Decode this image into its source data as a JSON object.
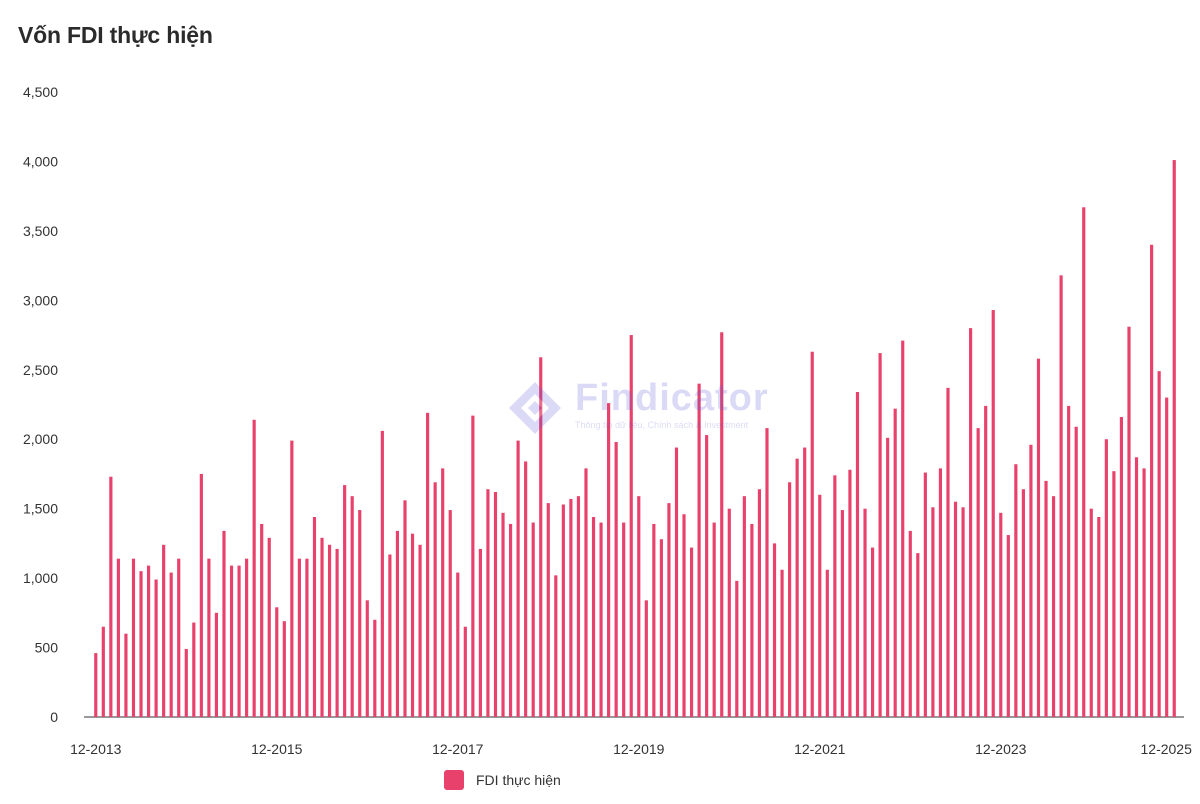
{
  "chart_data": {
    "type": "bar",
    "title": "Vốn FDI thực hiện",
    "series": [
      {
        "name": "FDI thực hiện",
        "color": "#e8416b",
        "values": [
          460,
          650,
          1730,
          1140,
          600,
          1140,
          1050,
          1090,
          990,
          1240,
          1040,
          1140,
          490,
          680,
          1750,
          1140,
          750,
          1340,
          1090,
          1090,
          1140,
          2140,
          1390,
          1290,
          790,
          690,
          1990,
          1140,
          1140,
          1440,
          1290,
          1240,
          1210,
          1670,
          1590,
          1490,
          840,
          700,
          2060,
          1170,
          1340,
          1560,
          1320,
          1240,
          2190,
          1690,
          1790,
          1490,
          1040,
          650,
          2170,
          1210,
          1640,
          1620,
          1470,
          1390,
          1990,
          1840,
          1400,
          2590,
          1540,
          1020,
          1530,
          1570,
          1590,
          1790,
          1440,
          1400,
          2260,
          1980,
          1400,
          2750,
          1590,
          840,
          1390,
          1280,
          1540,
          1940,
          1460,
          1220,
          2400,
          2030,
          1400,
          2770,
          1500,
          980,
          1590,
          1390,
          1640,
          2080,
          1250,
          1060,
          1690,
          1860,
          1940,
          2630,
          1600,
          1060,
          1740,
          1490,
          1780,
          2340,
          1500,
          1220,
          2620,
          2010,
          2220,
          2710,
          1340,
          1180,
          1760,
          1510,
          1790,
          2370,
          1550,
          1510,
          2800,
          2080,
          2240,
          2930,
          1470,
          1310,
          1820,
          1640,
          1960,
          2580,
          1700,
          1590,
          3180,
          2240,
          2090,
          3670,
          1500,
          1440,
          2000,
          1770,
          2160,
          2810,
          1870,
          1790,
          3400,
          2490,
          2300,
          4010
        ]
      }
    ],
    "x_tick_labels": [
      "12-2013",
      "12-2015",
      "12-2017",
      "12-2019",
      "12-2021",
      "12-2023",
      "12-2025"
    ],
    "y_ticks": [
      0,
      500,
      1000,
      1500,
      2000,
      2500,
      3000,
      3500,
      4000,
      4500
    ],
    "ylim": [
      0,
      4500
    ],
    "xlabel": "",
    "ylabel": "",
    "grid": false,
    "legend_position": "bottom-center"
  },
  "watermark": {
    "name": "Findicator",
    "tagline": "Thông tin dữ liệu, Chính sách & Investment"
  }
}
